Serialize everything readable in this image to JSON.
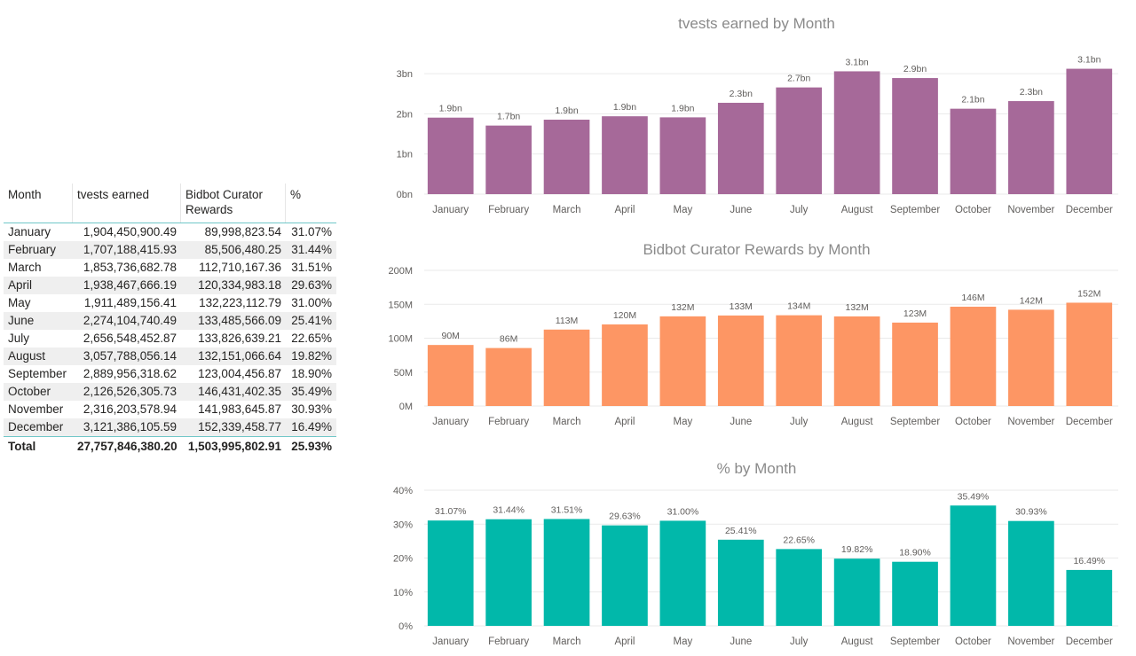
{
  "table": {
    "headers": {
      "month": "Month",
      "tvests": "tvests earned",
      "bidbot": "Bidbot Curator Rewards",
      "pct": "%"
    },
    "rows": [
      {
        "month": "January",
        "tvests": "1,904,450,900.49",
        "bidbot": "89,998,823.54",
        "pct": "31.07%"
      },
      {
        "month": "February",
        "tvests": "1,707,188,415.93",
        "bidbot": "85,506,480.25",
        "pct": "31.44%"
      },
      {
        "month": "March",
        "tvests": "1,853,736,682.78",
        "bidbot": "112,710,167.36",
        "pct": "31.51%"
      },
      {
        "month": "April",
        "tvests": "1,938,467,666.19",
        "bidbot": "120,334,983.18",
        "pct": "29.63%"
      },
      {
        "month": "May",
        "tvests": "1,911,489,156.41",
        "bidbot": "132,223,112.79",
        "pct": "31.00%"
      },
      {
        "month": "June",
        "tvests": "2,274,104,740.49",
        "bidbot": "133,485,566.09",
        "pct": "25.41%"
      },
      {
        "month": "July",
        "tvests": "2,656,548,452.87",
        "bidbot": "133,826,639.21",
        "pct": "22.65%"
      },
      {
        "month": "August",
        "tvests": "3,057,788,056.14",
        "bidbot": "132,151,066.64",
        "pct": "19.82%"
      },
      {
        "month": "September",
        "tvests": "2,889,956,318.62",
        "bidbot": "123,004,456.87",
        "pct": "18.90%"
      },
      {
        "month": "October",
        "tvests": "2,126,526,305.73",
        "bidbot": "146,431,402.35",
        "pct": "35.49%"
      },
      {
        "month": "November",
        "tvests": "2,316,203,578.94",
        "bidbot": "141,983,645.87",
        "pct": "30.93%"
      },
      {
        "month": "December",
        "tvests": "3,121,386,105.59",
        "bidbot": "152,339,458.77",
        "pct": "16.49%"
      }
    ],
    "total": {
      "month": "Total",
      "tvests": "27,757,846,380.20",
      "bidbot": "1,503,995,802.91",
      "pct": "25.93%"
    }
  },
  "chart_data": [
    {
      "type": "bar",
      "title": "tvests earned by Month",
      "color": "#a66999",
      "categories": [
        "January",
        "February",
        "March",
        "April",
        "May",
        "June",
        "July",
        "August",
        "September",
        "October",
        "November",
        "December"
      ],
      "values": [
        1904450900.49,
        1707188415.93,
        1853736682.78,
        1938467666.19,
        1911489156.41,
        2274104740.49,
        2656548452.87,
        3057788056.14,
        2889956318.62,
        2126526305.73,
        2316203578.94,
        3121386105.59
      ],
      "data_labels": [
        "1.9bn",
        "1.7bn",
        "1.9bn",
        "1.9bn",
        "1.9bn",
        "2.3bn",
        "2.7bn",
        "3.1bn",
        "2.9bn",
        "2.1bn",
        "2.3bn",
        "3.1bn"
      ],
      "yticks": [
        0,
        1000000000,
        2000000000,
        3000000000
      ],
      "ytick_labels": [
        "0bn",
        "1bn",
        "2bn",
        "3bn"
      ],
      "ylim": [
        0,
        3200000000
      ],
      "grid": true
    },
    {
      "type": "bar",
      "title": "Bidbot Curator Rewards by Month",
      "color": "#fd9664",
      "categories": [
        "January",
        "February",
        "March",
        "April",
        "May",
        "June",
        "July",
        "August",
        "September",
        "October",
        "November",
        "December"
      ],
      "values": [
        89998823.54,
        85506480.25,
        112710167.36,
        120334983.18,
        132223112.79,
        133485566.09,
        133826639.21,
        132151066.64,
        123004456.87,
        146431402.35,
        141983645.87,
        152339458.77
      ],
      "data_labels": [
        "90M",
        "86M",
        "113M",
        "120M",
        "132M",
        "133M",
        "134M",
        "132M",
        "123M",
        "146M",
        "142M",
        "152M"
      ],
      "yticks": [
        0,
        50000000,
        100000000,
        150000000,
        200000000
      ],
      "ytick_labels": [
        "0M",
        "50M",
        "100M",
        "150M",
        "200M"
      ],
      "ylim": [
        0,
        200000000
      ],
      "grid": true
    },
    {
      "type": "bar",
      "title": "% by Month",
      "color": "#01b8aa",
      "categories": [
        "January",
        "February",
        "March",
        "April",
        "May",
        "June",
        "July",
        "August",
        "September",
        "October",
        "November",
        "December"
      ],
      "values": [
        31.07,
        31.44,
        31.51,
        29.63,
        31.0,
        25.41,
        22.65,
        19.82,
        18.9,
        35.49,
        30.93,
        16.49
      ],
      "data_labels": [
        "31.07%",
        "31.44%",
        "31.51%",
        "29.63%",
        "31.00%",
        "25.41%",
        "22.65%",
        "19.82%",
        "18.90%",
        "35.49%",
        "30.93%",
        "16.49%"
      ],
      "yticks": [
        0,
        10,
        20,
        30,
        40
      ],
      "ytick_labels": [
        "0%",
        "10%",
        "20%",
        "30%",
        "40%"
      ],
      "ylim": [
        0,
        40
      ],
      "grid": true
    }
  ]
}
